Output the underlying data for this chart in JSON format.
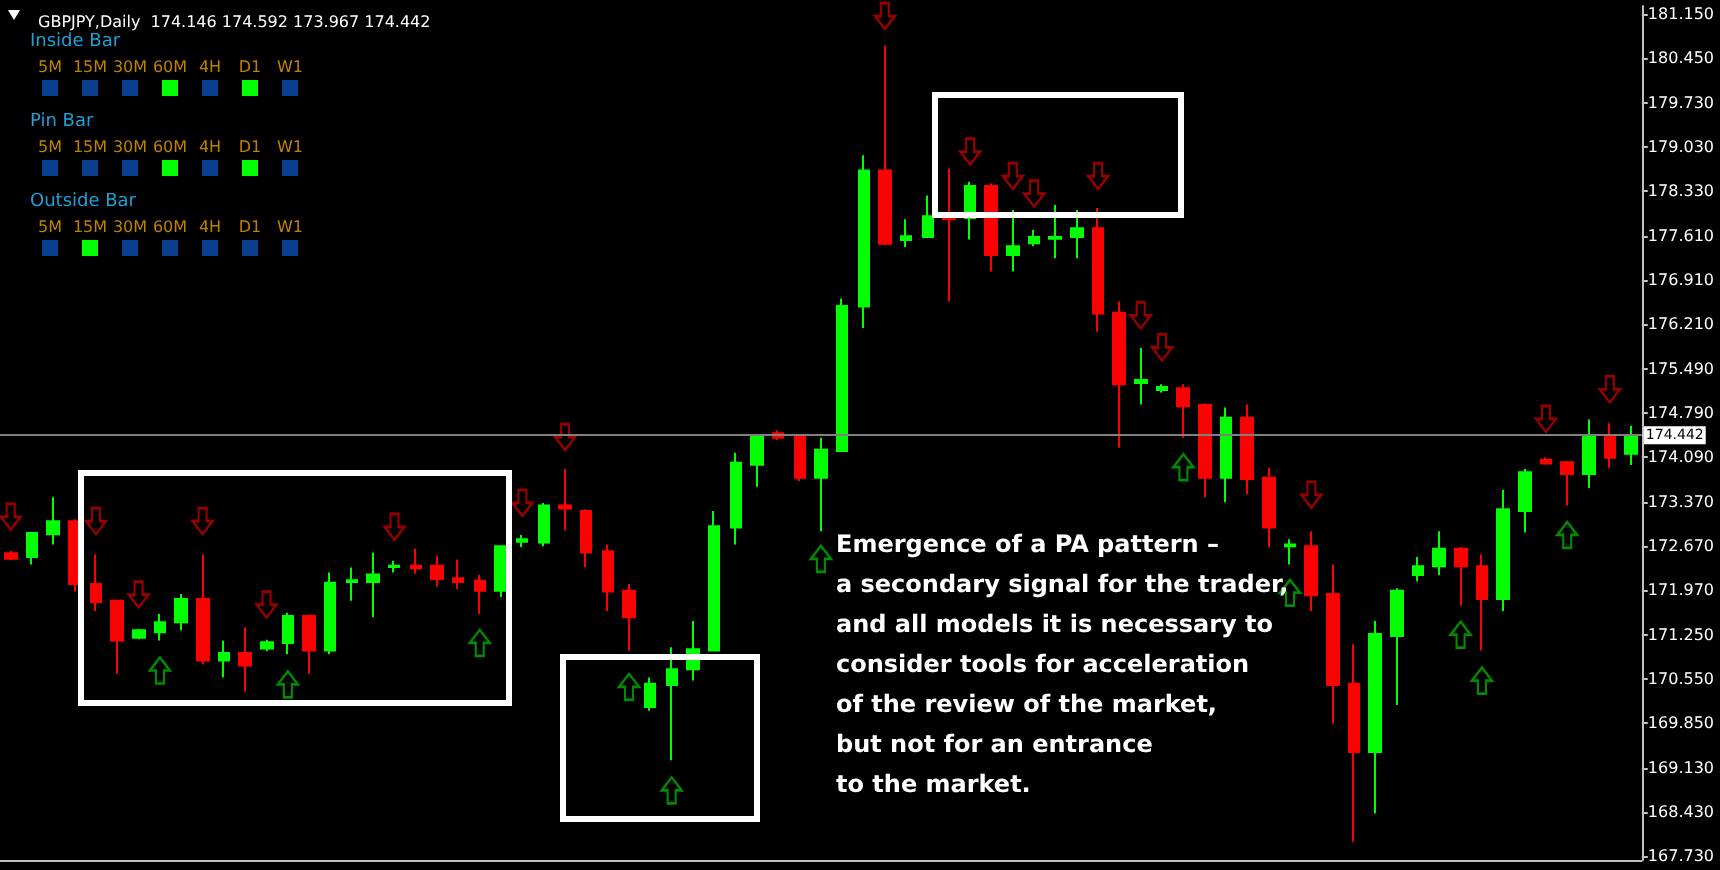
{
  "chart_data": {
    "type": "candlestick",
    "title": "GBPJPY,Daily  174.146 174.592 173.967 174.442",
    "categories": [
      null,
      null,
      null,
      null,
      null,
      null,
      null,
      null,
      null,
      null,
      null,
      null,
      null,
      null,
      null,
      null,
      null,
      null,
      null,
      null,
      null,
      null,
      null,
      null,
      null,
      null,
      null,
      null,
      null,
      null,
      null,
      null,
      null,
      null,
      null,
      null,
      null,
      null,
      null,
      null,
      null,
      null,
      null,
      null,
      null,
      null,
      null,
      null,
      null,
      null,
      null,
      null,
      null,
      null,
      null,
      null,
      null,
      null,
      null,
      null,
      null,
      null,
      null,
      null,
      null,
      null,
      null,
      null,
      null,
      null,
      null,
      null,
      null,
      null,
      null,
      null,
      null
    ],
    "ohlc": [
      [
        172.56,
        172.6,
        172.45,
        172.47
      ],
      [
        172.5,
        172.88,
        172.38,
        172.88
      ],
      [
        172.86,
        173.45,
        172.7,
        173.07
      ],
      [
        173.07,
        173.1,
        171.95,
        172.07
      ],
      [
        172.07,
        172.54,
        171.64,
        171.78
      ],
      [
        171.8,
        171.8,
        170.64,
        171.17
      ],
      [
        171.21,
        171.35,
        171.19,
        171.33
      ],
      [
        171.3,
        171.59,
        171.17,
        171.46
      ],
      [
        171.46,
        171.91,
        171.33,
        171.83
      ],
      [
        171.83,
        172.54,
        170.79,
        170.85
      ],
      [
        170.85,
        171.17,
        170.58,
        170.97
      ],
      [
        170.97,
        171.38,
        170.35,
        170.77
      ],
      [
        171.04,
        171.18,
        171.0,
        171.14
      ],
      [
        171.13,
        171.61,
        170.95,
        171.56
      ],
      [
        171.56,
        171.58,
        170.64,
        171.01
      ],
      [
        171.01,
        172.25,
        170.95,
        172.09
      ],
      [
        172.1,
        172.33,
        171.8,
        172.13
      ],
      [
        172.1,
        172.57,
        171.54,
        172.22
      ],
      [
        172.34,
        172.44,
        172.25,
        172.36
      ],
      [
        172.36,
        172.63,
        172.23,
        172.32
      ],
      [
        172.36,
        172.52,
        172.03,
        172.15
      ],
      [
        172.16,
        172.46,
        171.99,
        172.1
      ],
      [
        172.12,
        172.21,
        171.59,
        171.96
      ],
      [
        171.96,
        172.67,
        171.86,
        172.67
      ],
      [
        172.74,
        172.85,
        172.66,
        172.78
      ],
      [
        172.73,
        173.36,
        172.67,
        173.32
      ],
      [
        173.32,
        173.9,
        172.92,
        173.27
      ],
      [
        173.23,
        173.26,
        172.34,
        172.57
      ],
      [
        172.59,
        172.7,
        171.64,
        171.95
      ],
      [
        171.96,
        172.07,
        171.01,
        171.54
      ],
      [
        170.11,
        170.58,
        170.05,
        170.48
      ],
      [
        170.46,
        171.06,
        169.26,
        170.71
      ],
      [
        170.71,
        171.48,
        170.53,
        171.03
      ],
      [
        171.01,
        173.23,
        171.01,
        172.99
      ],
      [
        172.97,
        174.16,
        172.7,
        174.0
      ],
      [
        173.97,
        174.42,
        173.62,
        174.42
      ],
      [
        174.47,
        174.52,
        174.36,
        174.4
      ],
      [
        174.43,
        174.45,
        173.71,
        173.76
      ],
      [
        173.76,
        174.4,
        172.91,
        174.21
      ],
      [
        174.19,
        176.62,
        174.19,
        176.5
      ],
      [
        176.49,
        178.9,
        176.15,
        178.66
      ],
      [
        178.66,
        180.65,
        177.47,
        177.49
      ],
      [
        177.55,
        177.88,
        177.44,
        177.61
      ],
      [
        177.6,
        178.26,
        177.58,
        177.93
      ],
      [
        177.93,
        178.69,
        176.57,
        177.88
      ],
      [
        177.9,
        178.48,
        177.56,
        178.41
      ],
      [
        178.41,
        178.45,
        177.05,
        177.31
      ],
      [
        177.31,
        178.03,
        177.05,
        177.45
      ],
      [
        177.5,
        177.71,
        177.45,
        177.6
      ],
      [
        177.57,
        178.11,
        177.26,
        177.6
      ],
      [
        177.6,
        178.03,
        177.26,
        177.74
      ],
      [
        177.74,
        178.06,
        176.09,
        176.38
      ],
      [
        176.39,
        176.57,
        174.24,
        175.25
      ],
      [
        175.27,
        175.83,
        174.93,
        175.32
      ],
      [
        175.16,
        175.25,
        175.12,
        175.21
      ],
      [
        175.19,
        175.25,
        174.4,
        174.9
      ],
      [
        174.92,
        174.95,
        173.45,
        173.76
      ],
      [
        173.76,
        174.88,
        173.37,
        174.72
      ],
      [
        174.72,
        174.93,
        173.5,
        173.74
      ],
      [
        173.76,
        173.92,
        172.65,
        172.97
      ],
      [
        172.67,
        172.78,
        172.38,
        172.7
      ],
      [
        172.67,
        172.91,
        171.64,
        171.89
      ],
      [
        171.91,
        172.38,
        169.84,
        170.46
      ],
      [
        170.48,
        171.11,
        167.96,
        169.39
      ],
      [
        169.39,
        171.48,
        168.41,
        171.27
      ],
      [
        171.24,
        172.0,
        170.14,
        171.96
      ],
      [
        172.21,
        172.5,
        172.11,
        172.35
      ],
      [
        172.35,
        172.91,
        172.21,
        172.63
      ],
      [
        172.63,
        172.66,
        171.72,
        172.35
      ],
      [
        172.35,
        172.54,
        171.01,
        171.83
      ],
      [
        171.83,
        173.57,
        171.64,
        173.26
      ],
      [
        173.23,
        173.9,
        172.89,
        173.85
      ],
      [
        174.05,
        174.09,
        173.97,
        173.99
      ],
      [
        174.01,
        174.03,
        173.32,
        173.82
      ],
      [
        173.82,
        174.69,
        173.6,
        174.43
      ],
      [
        174.43,
        174.63,
        173.92,
        174.08
      ],
      [
        174.146,
        174.592,
        173.967,
        174.442
      ]
    ],
    "colors": [
      "#ff0000",
      "#00ff00",
      "#00ff00",
      "#ff0000",
      "#ff0000",
      "#ff0000",
      "#00ff00",
      "#00ff00",
      "#00ff00",
      "#ff0000",
      "#00ff00",
      "#ff0000",
      "#00ff00",
      "#00ff00",
      "#ff0000",
      "#00ff00",
      "#00ff00",
      "#00ff00",
      "#00ff00",
      "#ff0000",
      "#ff0000",
      "#ff0000",
      "#ff0000",
      "#00ff00",
      "#00ff00",
      "#00ff00",
      "#ff0000",
      "#ff0000",
      "#ff0000",
      "#ff0000",
      "#00ff00",
      "#00ff00",
      "#00ff00",
      "#00ff00",
      "#00ff00",
      "#00ff00",
      "#ff0000",
      "#ff0000",
      "#00ff00",
      "#00ff00",
      "#00ff00",
      "#ff0000",
      "#00ff00",
      "#00ff00",
      "#ff0000",
      "#00ff00",
      "#ff0000",
      "#00ff00",
      "#00ff00",
      "#00ff00",
      "#00ff00",
      "#ff0000",
      "#ff0000",
      "#00ff00",
      "#00ff00",
      "#ff0000",
      "#ff0000",
      "#00ff00",
      "#ff0000",
      "#ff0000",
      "#00ff00",
      "#ff0000",
      "#ff0000",
      "#ff0000",
      "#00ff00",
      "#00ff00",
      "#00ff00",
      "#00ff00",
      "#ff0000",
      "#ff0000",
      "#00ff00",
      "#00ff00",
      "#ff0000",
      "#ff0000",
      "#00ff00",
      "#ff0000",
      "#00ff00"
    ],
    "series": [
      {
        "type": "scatter",
        "color": "#c00000",
        "values": [
          173.14,
          null,
          null,
          null,
          173.07,
          null,
          171.9,
          null,
          null,
          173.07,
          null,
          null,
          171.74,
          null,
          null,
          null,
          null,
          null,
          172.98,
          null,
          null,
          null,
          null,
          null,
          173.36,
          null,
          174.41,
          null,
          null,
          null,
          null,
          null,
          null,
          null,
          null,
          null,
          null,
          null,
          null,
          null,
          null,
          181.12,
          null,
          null,
          null,
          178.96,
          null,
          178.57,
          178.29,
          null,
          null,
          178.57,
          null,
          176.35,
          175.84,
          null,
          null,
          null,
          null,
          null,
          null,
          173.49,
          null,
          null,
          null,
          null,
          null,
          null,
          null,
          null,
          null,
          null,
          174.7,
          null,
          null,
          175.17,
          null
        ]
      },
      {
        "type": "scatter",
        "color": "#00b000",
        "values": [
          null,
          null,
          null,
          null,
          null,
          null,
          null,
          170.69,
          null,
          null,
          null,
          null,
          null,
          170.47,
          null,
          null,
          null,
          null,
          null,
          null,
          null,
          null,
          171.13,
          null,
          null,
          null,
          null,
          null,
          null,
          170.43,
          null,
          168.78,
          null,
          null,
          null,
          null,
          null,
          null,
          172.47,
          null,
          null,
          null,
          null,
          null,
          null,
          null,
          null,
          null,
          null,
          null,
          null,
          null,
          null,
          null,
          null,
          173.93,
          null,
          null,
          null,
          null,
          171.93,
          null,
          null,
          null,
          null,
          null,
          null,
          null,
          171.26,
          170.53,
          null,
          null,
          null,
          172.85,
          null,
          null,
          null
        ]
      }
    ],
    "ylim": [
      167.67,
      181.28
    ],
    "yticks": [
      {
        "value": 181.15,
        "label": "181.150"
      },
      {
        "value": 180.45,
        "label": "180.450"
      },
      {
        "value": 179.73,
        "label": "179.730"
      },
      {
        "value": 179.03,
        "label": "179.030"
      },
      {
        "value": 178.33,
        "label": "178.330"
      },
      {
        "value": 177.61,
        "label": "177.610"
      },
      {
        "value": 176.91,
        "label": "176.910"
      },
      {
        "value": 176.21,
        "label": "176.210"
      },
      {
        "value": 175.49,
        "label": "175.490"
      },
      {
        "value": 174.79,
        "label": "174.790"
      },
      {
        "value": 174.09,
        "label": "174.090"
      },
      {
        "value": 173.37,
        "label": "173.370"
      },
      {
        "value": 172.67,
        "label": "172.670"
      },
      {
        "value": 171.97,
        "label": "171.970"
      },
      {
        "value": 171.25,
        "label": "171.250"
      },
      {
        "value": 170.55,
        "label": "170.550"
      },
      {
        "value": 169.85,
        "label": "169.850"
      },
      {
        "value": 169.13,
        "label": "169.130"
      },
      {
        "value": 168.43,
        "label": "168.430"
      },
      {
        "value": 167.73,
        "label": "167.730"
      }
    ],
    "ref_lines": [
      {
        "axis": "y",
        "value": 174.442,
        "label": "174.442",
        "color": "#808080"
      }
    ],
    "tick_labels": "y",
    "grid": false,
    "annotations": [
      "Inside Bar",
      "5M 15M 30M 60M 4H D1 W1",
      "Pin Bar",
      "5M 15M 30M 60M 4H D1 W1",
      "Outside Bar",
      "5M 15M 30M 60M 4H D1 W1",
      "Emergence of a PA pattern –\na secondary signal for the trader,\nand all models it is necessary to\nconsider tools for acceleration\nof the review of the market,\nbut not for an entrance\nto the market."
    ]
  }
}
